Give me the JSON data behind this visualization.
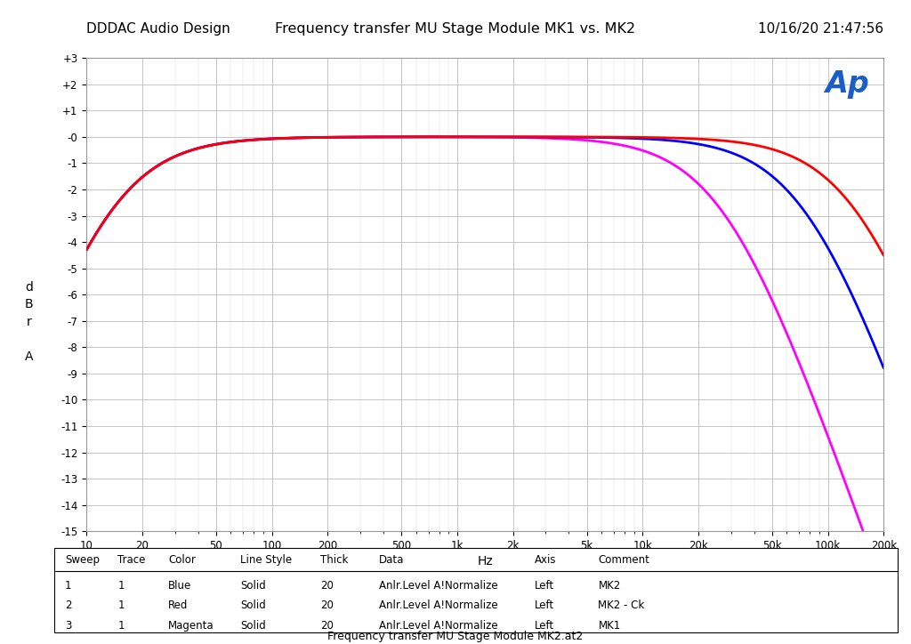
{
  "title_left": "DDDAC Audio Design",
  "title_center": "Frequency transfer MU Stage Module MK1 vs. MK2",
  "title_right": "10/16/20 21:47:56",
  "xlabel": "Hz",
  "ylim": [
    -15,
    3
  ],
  "yticks": [
    3,
    2,
    1,
    0,
    -1,
    -2,
    -3,
    -4,
    -5,
    -6,
    -7,
    -8,
    -9,
    -10,
    -11,
    -12,
    -13,
    -14,
    -15
  ],
  "ytick_labels": [
    "+3",
    "+2",
    "+1",
    "-0",
    "-1",
    "-2",
    "-3",
    "-4",
    "-5",
    "-6",
    "-7",
    "-8",
    "-9",
    "-10",
    "-11",
    "-12",
    "-13",
    "-14",
    "-15"
  ],
  "xtick_positions": [
    10,
    20,
    50,
    100,
    200,
    500,
    1000,
    2000,
    5000,
    10000,
    20000,
    50000,
    100000,
    200000
  ],
  "xtick_labels": [
    "10",
    "20",
    "50",
    "100",
    "200",
    "500",
    "1k",
    "2k",
    "5k",
    "10k",
    "20k",
    "50k",
    "100k",
    "200k"
  ],
  "bg_color": "#ffffff",
  "grid_color": "#bbbbbb",
  "grid_color_minor": "#dddddd",
  "plot_bg": "#ffffff",
  "curve_blue_color": "#0000ff",
  "curve_red_color": "#ff0000",
  "curve_magenta_color": "#ff00ff",
  "ap_text_color": "#1a5fc8",
  "footer_text": "Frequency transfer MU Stage Module MK2.at2",
  "table_headers": [
    "Sweep",
    "Trace",
    "Color",
    "Line Style",
    "Thick",
    "Data",
    "Axis",
    "Comment"
  ],
  "table_rows": [
    [
      "1",
      "1",
      "Blue",
      "Solid",
      "20",
      "Anlr.Level A!Normalize",
      "Left",
      "MK2"
    ],
    [
      "2",
      "1",
      "Red",
      "Solid",
      "20",
      "Anlr.Level A!Normalize",
      "Left",
      "MK2 - Ck"
    ],
    [
      "3",
      "1",
      "Magenta",
      "Solid",
      "20",
      "Anlr.Level A!Normalize",
      "Left",
      "MK1"
    ]
  ],
  "blue_f_hp": 13,
  "blue_f_lp": 78000,
  "red_f_hp": 13,
  "red_f_lp": 148000,
  "magenta_f_hp": 13,
  "magenta_f_lp": 28000
}
